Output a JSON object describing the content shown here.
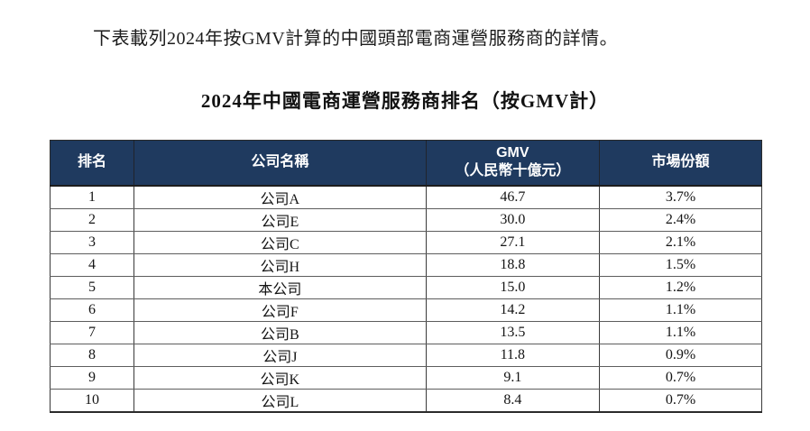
{
  "page": {
    "intro_text": "下表載列2024年按GMV計算的中國頭部電商運營服務商的詳情。",
    "table_title": "2024年中國電商運營服務商排名（按GMV計）"
  },
  "colors": {
    "header_bg": "#1f3a5f",
    "header_text": "#ffffff",
    "border_dark": "#2b2b2b",
    "border_row": "#5d5d5d",
    "page_bg": "#ffffff"
  },
  "chart_data": {
    "type": "table",
    "title": "2024年中國電商運營服務商排名（按GMV計）",
    "columns": [
      "排名",
      "公司名稱",
      "GMV（人民幣十億元）",
      "市場份額"
    ],
    "rows": [
      [
        "1",
        "公司A",
        "46.7",
        "3.7%"
      ],
      [
        "2",
        "公司E",
        "30.0",
        "2.4%"
      ],
      [
        "3",
        "公司C",
        "27.1",
        "2.1%"
      ],
      [
        "4",
        "公司H",
        "18.8",
        "1.5%"
      ],
      [
        "5",
        "本公司",
        "15.0",
        "1.2%"
      ],
      [
        "6",
        "公司F",
        "14.2",
        "1.1%"
      ],
      [
        "7",
        "公司B",
        "13.5",
        "1.1%"
      ],
      [
        "8",
        "公司J",
        "11.8",
        "0.9%"
      ],
      [
        "9",
        "公司K",
        "9.1",
        "0.7%"
      ],
      [
        "10",
        "公司L",
        "8.4",
        "0.7%"
      ]
    ]
  },
  "table": {
    "headers": {
      "rank": "排名",
      "company": "公司名稱",
      "gmv_line1": "GMV",
      "gmv_line2": "（人民幣十億元）",
      "share": "市場份額"
    },
    "rows": [
      {
        "rank": "1",
        "company": "公司A",
        "gmv": "46.7",
        "share": "3.7%"
      },
      {
        "rank": "2",
        "company": "公司E",
        "gmv": "30.0",
        "share": "2.4%"
      },
      {
        "rank": "3",
        "company": "公司C",
        "gmv": "27.1",
        "share": "2.1%"
      },
      {
        "rank": "4",
        "company": "公司H",
        "gmv": "18.8",
        "share": "1.5%"
      },
      {
        "rank": "5",
        "company": "本公司",
        "gmv": "15.0",
        "share": "1.2%"
      },
      {
        "rank": "6",
        "company": "公司F",
        "gmv": "14.2",
        "share": "1.1%"
      },
      {
        "rank": "7",
        "company": "公司B",
        "gmv": "13.5",
        "share": "1.1%"
      },
      {
        "rank": "8",
        "company": "公司J",
        "gmv": "11.8",
        "share": "0.9%"
      },
      {
        "rank": "9",
        "company": "公司K",
        "gmv": "9.1",
        "share": "0.7%"
      },
      {
        "rank": "10",
        "company": "公司L",
        "gmv": "8.4",
        "share": "0.7%"
      }
    ]
  }
}
